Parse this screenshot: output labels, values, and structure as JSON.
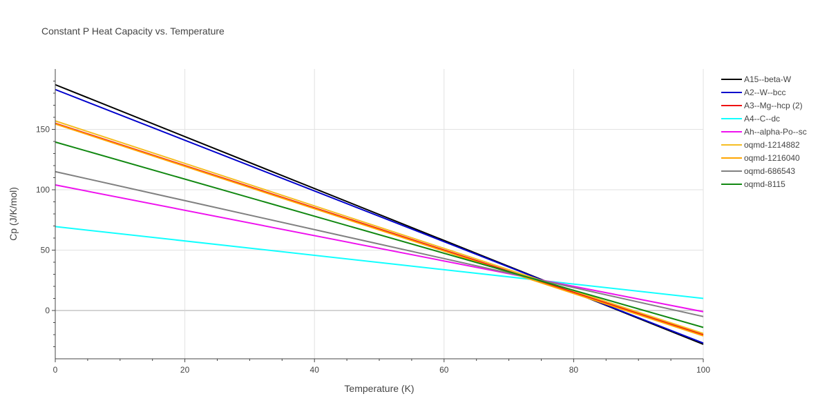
{
  "chart_data": {
    "type": "line",
    "title": "Constant P Heat Capacity vs. Temperature",
    "xlabel": "Temperature (K)",
    "ylabel": "Cp (J/K/mol)",
    "xlim": [
      0,
      100
    ],
    "ylim": [
      -40,
      200
    ],
    "xticks": [
      0,
      20,
      40,
      60,
      80,
      100
    ],
    "yticks": [
      0,
      50,
      100,
      150
    ],
    "grid": true,
    "legend_position": "top-right",
    "series": [
      {
        "name": "A15--beta-W",
        "color": "#000000",
        "x": [
          0,
          100
        ],
        "y": [
          187,
          -28
        ]
      },
      {
        "name": "A2--W--bcc",
        "color": "#0000cc",
        "x": [
          0,
          100
        ],
        "y": [
          183,
          -27
        ]
      },
      {
        "name": "A3--Mg--hcp (2)",
        "color": "#ee1111",
        "x": [
          0,
          100
        ],
        "y": [
          155,
          -20
        ]
      },
      {
        "name": "A4--C--dc",
        "color": "#11ffff",
        "x": [
          0,
          100
        ],
        "y": [
          69.5,
          10
        ]
      },
      {
        "name": "Ah--alpha-Po--sc",
        "color": "#ee11ee",
        "x": [
          0,
          100
        ],
        "y": [
          104,
          -1
        ]
      },
      {
        "name": "oqmd-1214882",
        "color": "#f5bd22",
        "x": [
          0,
          100
        ],
        "y": [
          157,
          -19
        ]
      },
      {
        "name": "oqmd-1216040",
        "color": "#ffa500",
        "x": [
          0,
          100
        ],
        "y": [
          154.5,
          -21
        ]
      },
      {
        "name": "oqmd-686543",
        "color": "#808080",
        "x": [
          0,
          100
        ],
        "y": [
          115,
          -5
        ]
      },
      {
        "name": "oqmd-8115",
        "color": "#118811",
        "x": [
          0,
          100
        ],
        "y": [
          139.5,
          -14
        ]
      }
    ]
  }
}
